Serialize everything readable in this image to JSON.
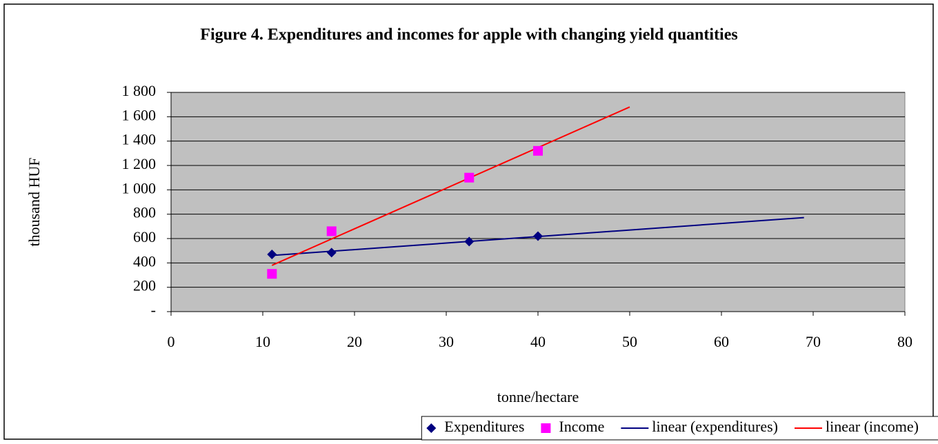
{
  "chart_data": {
    "type": "scatter",
    "title": "Figure 4. Expenditures and incomes for apple with changing yield quantities",
    "xlabel": "tonne/hectare",
    "ylabel": "thousand HUF",
    "xlim": [
      0,
      80
    ],
    "xticks": [
      0,
      10,
      20,
      30,
      40,
      50,
      60,
      70,
      80
    ],
    "ylim": [
      0,
      1800
    ],
    "yticks": [
      {
        "value": 0,
        "label": "-"
      },
      200,
      400,
      600,
      800,
      {
        "value": 1000,
        "label": "1 000"
      },
      {
        "value": 1200,
        "label": "1 200"
      },
      {
        "value": 1400,
        "label": "1 400"
      },
      {
        "value": 1600,
        "label": "1 600"
      },
      {
        "value": 1800,
        "label": "1 800"
      }
    ],
    "grid": true,
    "legend": "bottom",
    "series": [
      {
        "name": "Expenditures",
        "type": "scatter",
        "marker": "diamond",
        "color": "#000080",
        "x": [
          11,
          17.5,
          32.5,
          40
        ],
        "values": [
          470,
          485,
          575,
          620
        ]
      },
      {
        "name": "Income",
        "type": "scatter",
        "marker": "square",
        "color": "#ff00ff",
        "x": [
          11,
          17.5,
          32.5,
          40
        ],
        "values": [
          310,
          660,
          1100,
          1320
        ]
      },
      {
        "name": "linear (expenditures)",
        "type": "line",
        "color": "#000080",
        "x": [
          11,
          69
        ],
        "values": [
          461,
          772
        ]
      },
      {
        "name": "linear (income)",
        "type": "line",
        "color": "#ff0000",
        "x": [
          11,
          50
        ],
        "values": [
          380,
          1680
        ]
      }
    ]
  }
}
